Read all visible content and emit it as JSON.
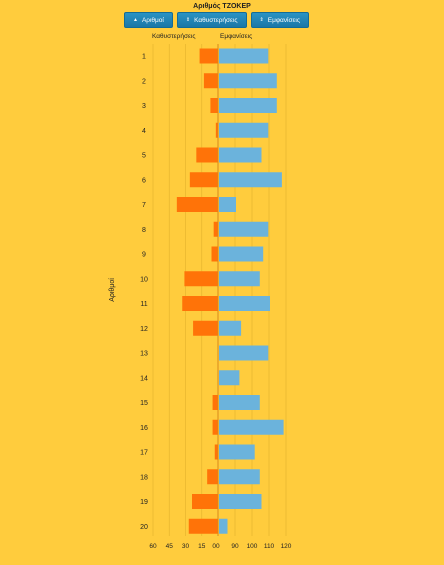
{
  "title": "Αριθμός ΤΖΟΚΕΡ",
  "buttons": [
    {
      "label": "Αριθμοί",
      "icon": "▲"
    },
    {
      "label": "Καθυστερήσεις",
      "icon": "⇕"
    },
    {
      "label": "Εμφανίσεις",
      "icon": "⇕"
    }
  ],
  "chart_data": {
    "type": "bar",
    "orientation": "horizontal-diverging",
    "ylabel": "Αριθμοί",
    "categories": [
      "1",
      "2",
      "3",
      "4",
      "5",
      "6",
      "7",
      "8",
      "9",
      "10",
      "11",
      "12",
      "13",
      "14",
      "15",
      "16",
      "17",
      "18",
      "19",
      "20"
    ],
    "series": [
      {
        "name": "Καθυστερήσεις",
        "color": "#FF7308",
        "direction": "left",
        "ticks": [
          "60",
          "45",
          "30",
          "15",
          "00"
        ],
        "range": [
          60,
          0
        ],
        "values": [
          17,
          13,
          7,
          2,
          20,
          26,
          38,
          4,
          6,
          31,
          33,
          23,
          0,
          0,
          5,
          5,
          3,
          10,
          24,
          27
        ]
      },
      {
        "name": "Εμφανίσεις",
        "color": "#6BB3DC",
        "direction": "right",
        "ticks": [
          "90",
          "100",
          "110",
          "120"
        ],
        "range": [
          80,
          120
        ],
        "values": [
          109,
          114,
          114,
          109,
          105,
          117,
          90,
          109,
          106,
          104,
          110,
          93,
          109,
          92,
          104,
          118,
          101,
          104,
          105,
          85
        ]
      }
    ]
  }
}
